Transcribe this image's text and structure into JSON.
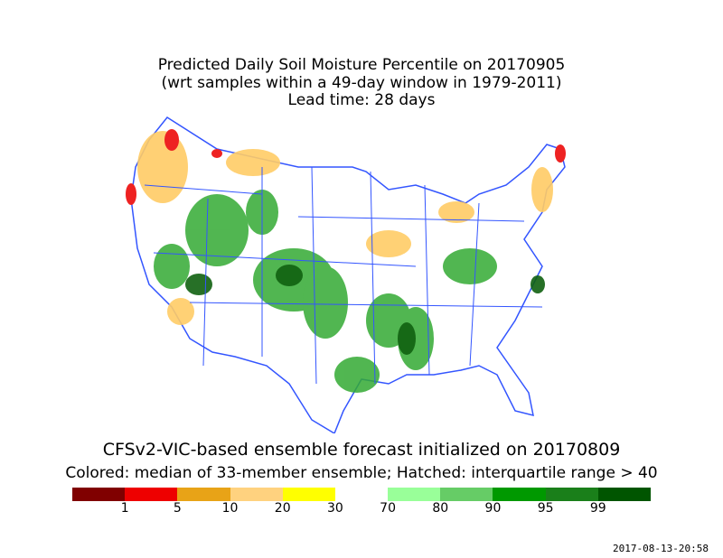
{
  "title": {
    "line1": "Predicted Daily Soil Moisture Percentile on 20170905",
    "line2": "(wrt samples within a 49-day window in 1979-2011)",
    "line3": "Lead time: 28 days"
  },
  "subtitle": "CFSv2-VIC-based ensemble forecast initialized on 20170809",
  "note": "Colored: median of 33-member ensemble; Hatched: interquartile range > 40",
  "legend": {
    "segments": [
      {
        "color": "#800000"
      },
      {
        "color": "#ee0000"
      },
      {
        "color": "#e8a317"
      },
      {
        "color": "#ffd27f"
      },
      {
        "color": "#ffff00"
      },
      {
        "color": "#ffffff"
      },
      {
        "color": "#99ff99"
      },
      {
        "color": "#66cc66"
      },
      {
        "color": "#009900"
      },
      {
        "color": "#1a7f1a"
      },
      {
        "color": "#005500"
      }
    ],
    "ticks": [
      "1",
      "5",
      "10",
      "20",
      "30",
      "70",
      "80",
      "90",
      "95",
      "99"
    ]
  },
  "colors": {
    "boundary": "#3355ff",
    "wet": "#33aa33",
    "dry": "#ffcc66",
    "very_dry": "#ee2222"
  },
  "timestamp": "2017-08-13-20:58"
}
